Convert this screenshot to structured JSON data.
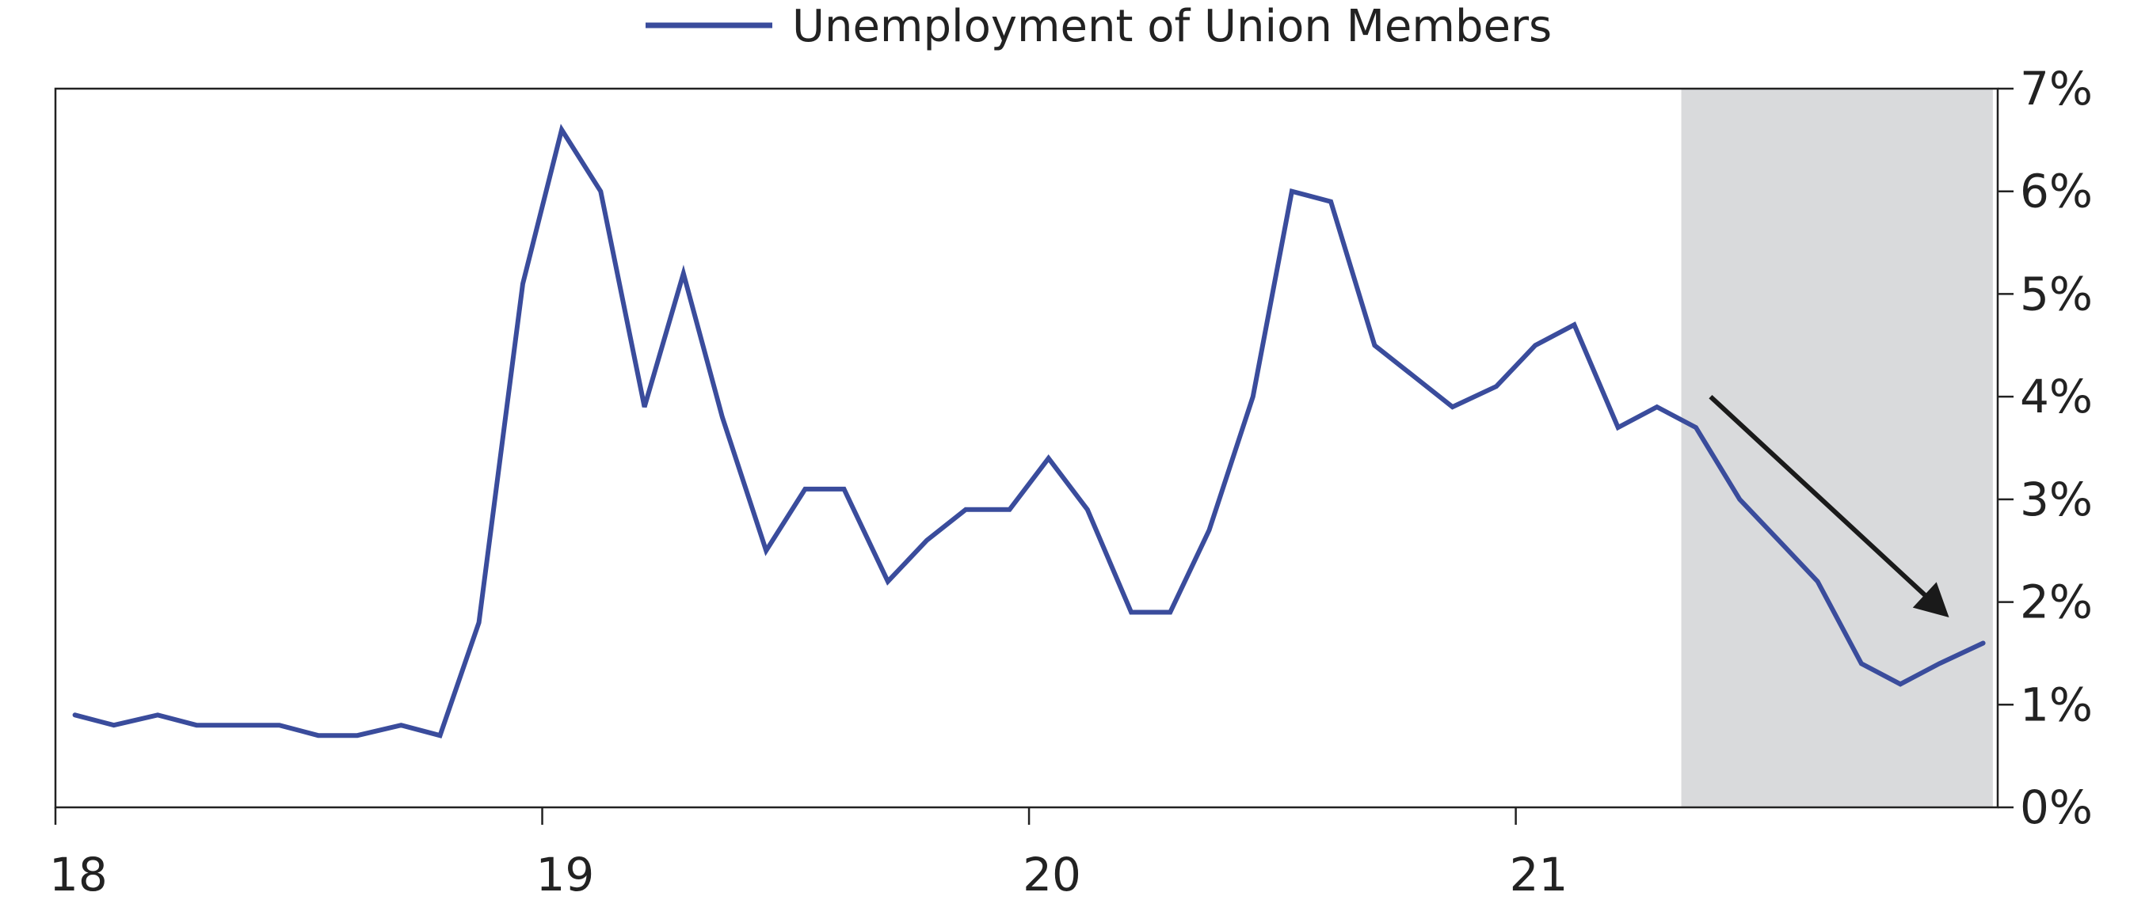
{
  "chart_data": {
    "type": "line",
    "title": "",
    "xlabel": "",
    "ylabel": "",
    "legend": {
      "placement": "top-center",
      "entries": [
        "Unemployment of Union Members"
      ]
    },
    "x_ticks": [
      "18",
      "19",
      "20",
      "21"
    ],
    "x_range": [
      2018.0,
      2021.99
    ],
    "ylim": [
      0,
      7
    ],
    "y_ticks": [
      "0%",
      "1%",
      "2%",
      "3%",
      "4%",
      "5%",
      "6%",
      "7%"
    ],
    "y_axis_side": "right",
    "grid": false,
    "shaded_region": {
      "x_start": 2021.34,
      "x_end": 2021.98,
      "color": "#d9dadc"
    },
    "annotation": {
      "type": "arrow",
      "from": [
        2021.4,
        4.0
      ],
      "to": [
        2021.89,
        1.85
      ],
      "color": "#1a1a1a"
    },
    "series": [
      {
        "name": "Unemployment of Union Members",
        "color": "#3a4c9c",
        "x": [
          2018.04,
          2018.12,
          2018.21,
          2018.29,
          2018.37,
          2018.46,
          2018.54,
          2018.62,
          2018.71,
          2018.79,
          2018.87,
          2018.96,
          2019.04,
          2019.12,
          2019.21,
          2019.29,
          2019.37,
          2019.46,
          2019.54,
          2019.62,
          2019.71,
          2019.79,
          2019.87,
          2019.96,
          2020.04,
          2020.12,
          2020.21,
          2020.29,
          2020.37,
          2020.46,
          2020.54,
          2020.62,
          2020.71,
          2020.79,
          2020.87,
          2020.96,
          2021.04,
          2021.12,
          2021.21,
          2021.29,
          2021.37,
          2021.46,
          2021.54,
          2021.62,
          2021.71,
          2021.79,
          2021.87,
          2021.96
        ],
        "values": [
          0.9,
          0.8,
          0.9,
          0.8,
          0.8,
          0.8,
          0.7,
          0.7,
          0.8,
          0.7,
          1.8,
          5.1,
          6.6,
          6.0,
          3.9,
          5.2,
          3.8,
          2.5,
          3.1,
          3.1,
          2.2,
          2.6,
          2.9,
          2.9,
          3.4,
          2.9,
          1.9,
          1.9,
          2.7,
          4.0,
          6.0,
          5.9,
          4.5,
          4.2,
          3.9,
          4.1,
          4.5,
          4.7,
          3.7,
          3.9,
          3.7,
          3.0,
          2.6,
          2.2,
          1.4,
          1.2,
          1.4,
          1.6
        ]
      }
    ]
  }
}
